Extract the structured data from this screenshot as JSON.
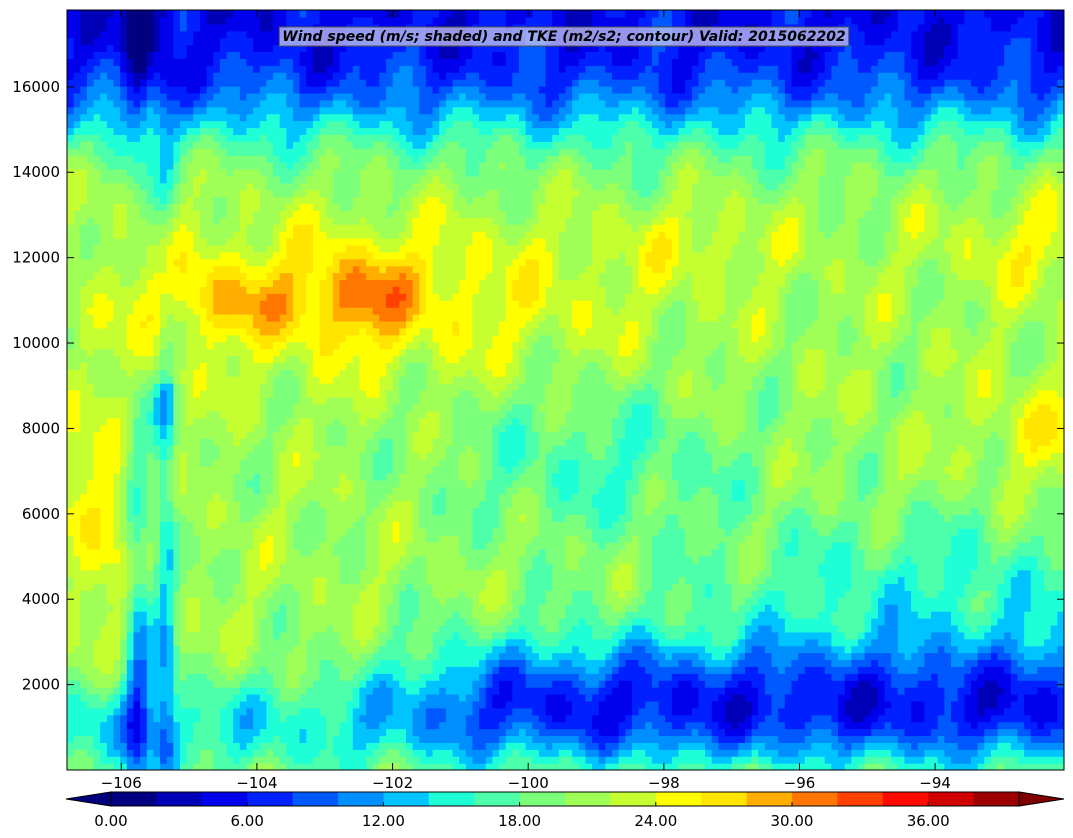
{
  "chart_data": {
    "type": "heatmap",
    "title": "Wind speed (m/s; shaded) and TKE (m2/s2; contour) Valid: 2015062202",
    "xlabel": "",
    "ylabel": "",
    "xlim": [
      -106.8,
      -92.1
    ],
    "ylim": [
      0,
      17800
    ],
    "x_ticks": [
      -106,
      -104,
      -102,
      -100,
      -98,
      -96,
      -94
    ],
    "x_tick_labels": [
      "−106",
      "−104",
      "−102",
      "−100",
      "−98",
      "−96",
      "−94"
    ],
    "y_ticks": [
      2000,
      4000,
      6000,
      8000,
      10000,
      12000,
      14000,
      16000
    ],
    "y_tick_labels": [
      "2000",
      "4000",
      "6000",
      "8000",
      "10000",
      "12000",
      "14000",
      "16000"
    ],
    "grid": false,
    "colormap": "jet",
    "colorbar": {
      "orientation": "horizontal",
      "placement": "bottom",
      "extend": "both",
      "levels": [
        0,
        2,
        4,
        6,
        8,
        10,
        12,
        14,
        16,
        18,
        20,
        22,
        24,
        26,
        28,
        30,
        32,
        34,
        36,
        38,
        40
      ],
      "tick_values": [
        0,
        6,
        12,
        18,
        24,
        30,
        36
      ],
      "tick_labels": [
        "0.00",
        "6.00",
        "12.00",
        "18.00",
        "24.00",
        "30.00",
        "36.00"
      ],
      "colors": [
        "#000080",
        "#0000b6",
        "#0000ed",
        "#0020ff",
        "#0058ff",
        "#008fff",
        "#00c4ff",
        "#1fffd7",
        "#4dffaa",
        "#7cff7a",
        "#a0ff56",
        "#c6ff31",
        "#ffff00",
        "#ffe500",
        "#ffae00",
        "#ff7700",
        "#ff4000",
        "#ff0900",
        "#d00000",
        "#9c0000"
      ],
      "under_color": "#00007f",
      "over_color": "#7f0000"
    },
    "field_features": [
      {
        "feature": "upper-level jet core",
        "x_range": [
          -105.4,
          -98.3
        ],
        "y_range": [
          9600,
          12800
        ],
        "max_value": 36
      },
      {
        "feature": "secondary jet maximum",
        "x_range": [
          -97.5,
          -92.1
        ],
        "y_range": [
          11800,
          12800
        ],
        "value": 28
      },
      {
        "feature": "mid-level wind maximum",
        "x_range": [
          -93.0,
          -92.1
        ],
        "y_range": [
          7600,
          8800
        ],
        "value": 28
      },
      {
        "feature": "low-level jet near western terrain",
        "x_range": [
          -106.8,
          -105.8
        ],
        "y_range": [
          4500,
          7200
        ],
        "value": 28
      },
      {
        "feature": "weak boundary-layer winds",
        "x_range": [
          -101.2,
          -92.1
        ],
        "y_range": [
          1500,
          3000
        ],
        "value": 6
      },
      {
        "feature": "weak stratospheric winds",
        "x_range": [
          -106.8,
          -92.1
        ],
        "y_range": [
          16500,
          17800
        ],
        "value": 6
      }
    ]
  }
}
